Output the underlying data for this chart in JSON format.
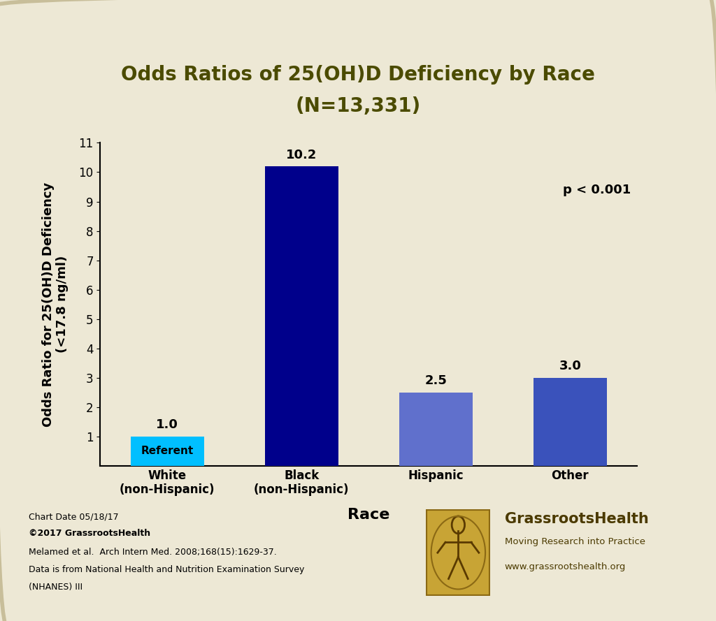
{
  "title_line1": "Odds Ratios of 25(OH)D Deficiency by Race",
  "title_line2": "(N=13,331)",
  "categories": [
    "White\n(non-Hispanic)",
    "Black\n(non-Hispanic)",
    "Hispanic",
    "Other"
  ],
  "values": [
    1.0,
    10.2,
    2.5,
    3.0
  ],
  "bar_colors": [
    "#00BFFF",
    "#00008B",
    "#6070CC",
    "#3A52BB"
  ],
  "referent_label": "Referent",
  "value_labels": [
    "1.0",
    "10.2",
    "2.5",
    "3.0"
  ],
  "ylabel_line1": "Odds Ratio for 25(OH)D Deficiency",
  "ylabel_line2": "(<17.8 ng/ml)",
  "xlabel": "Race",
  "ylim": [
    0,
    11
  ],
  "yticks": [
    1,
    2,
    3,
    4,
    5,
    6,
    7,
    8,
    9,
    10,
    11
  ],
  "pvalue_text": "p < 0.001",
  "background_color": "#EDE8D5",
  "plot_bg_color": "#EDE8D5",
  "title_color": "#4B4B00",
  "axis_label_color": "#000000",
  "tick_label_color": "#000000",
  "bar_label_color": "#000000",
  "footer_line1": "Chart Date 05/18/17",
  "footer_line2": "©2017 GrassrootsHealth",
  "footer_line3": "Melamed et al.  Arch Intern Med. 2008;168(15):1629-37.",
  "footer_line4": "Data is from National Health and Nutrition Examination Survey",
  "footer_line5": "(NHANES) III",
  "brand_name": "GrassrootsHealth",
  "brand_subtitle": "Moving Research into Practice",
  "brand_url": "www.grassrootshealth.org",
  "brand_color": "#4B3A00"
}
